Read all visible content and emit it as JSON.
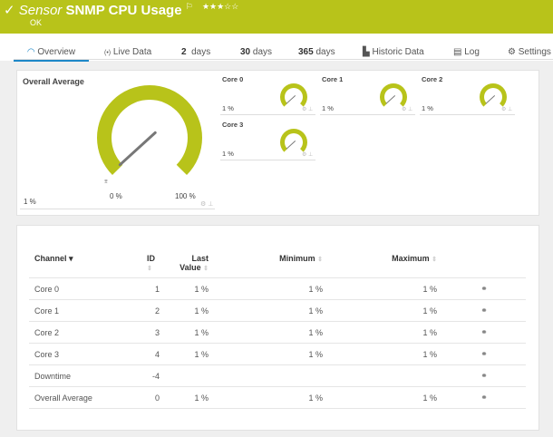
{
  "header": {
    "prefix": "Sensor",
    "title": "SNMP CPU Usage",
    "flag_icon": "flag-icon",
    "stars": "★★★☆☆",
    "rating": 3,
    "status": "OK",
    "color": "#b8c31a"
  },
  "tabs": [
    {
      "label": "Overview",
      "icon": "gauge-icon"
    },
    {
      "label": "Live Data",
      "icon": "broadcast-icon"
    },
    {
      "num": "2",
      "label": "days"
    },
    {
      "num": "30",
      "label": "days"
    },
    {
      "num": "365",
      "label": "days"
    },
    {
      "label": "Historic Data",
      "icon": "chart-icon"
    },
    {
      "label": "Log",
      "icon": "log-icon"
    },
    {
      "label": "Settings",
      "icon": "gear-icon"
    }
  ],
  "overall": {
    "title": "Overall Average",
    "value": "1 %",
    "min_label": "0 %",
    "max_label": "100 %",
    "percent": 1
  },
  "cores": [
    {
      "title": "Core 0",
      "value": "1 %",
      "percent": 1
    },
    {
      "title": "Core 1",
      "value": "1 %",
      "percent": 1
    },
    {
      "title": "Core 2",
      "value": "1 %",
      "percent": 1
    },
    {
      "title": "Core 3",
      "value": "1 %",
      "percent": 1
    }
  ],
  "table": {
    "headers": {
      "channel": "Channel ▾",
      "id": "ID",
      "last": "Last",
      "last2": "Value",
      "min": "Minimum",
      "max": "Maximum"
    },
    "rows": [
      {
        "channel": "Core 0",
        "id": "1",
        "last": "1 %",
        "min": "1 %",
        "max": "1 %"
      },
      {
        "channel": "Core 1",
        "id": "2",
        "last": "1 %",
        "min": "1 %",
        "max": "1 %"
      },
      {
        "channel": "Core 2",
        "id": "3",
        "last": "1 %",
        "min": "1 %",
        "max": "1 %"
      },
      {
        "channel": "Core 3",
        "id": "4",
        "last": "1 %",
        "min": "1 %",
        "max": "1 %"
      },
      {
        "channel": "Downtime",
        "id": "-4",
        "last": "",
        "min": "",
        "max": ""
      },
      {
        "channel": "Overall Average",
        "id": "0",
        "last": "1 %",
        "min": "1 %",
        "max": "1 %"
      }
    ]
  }
}
